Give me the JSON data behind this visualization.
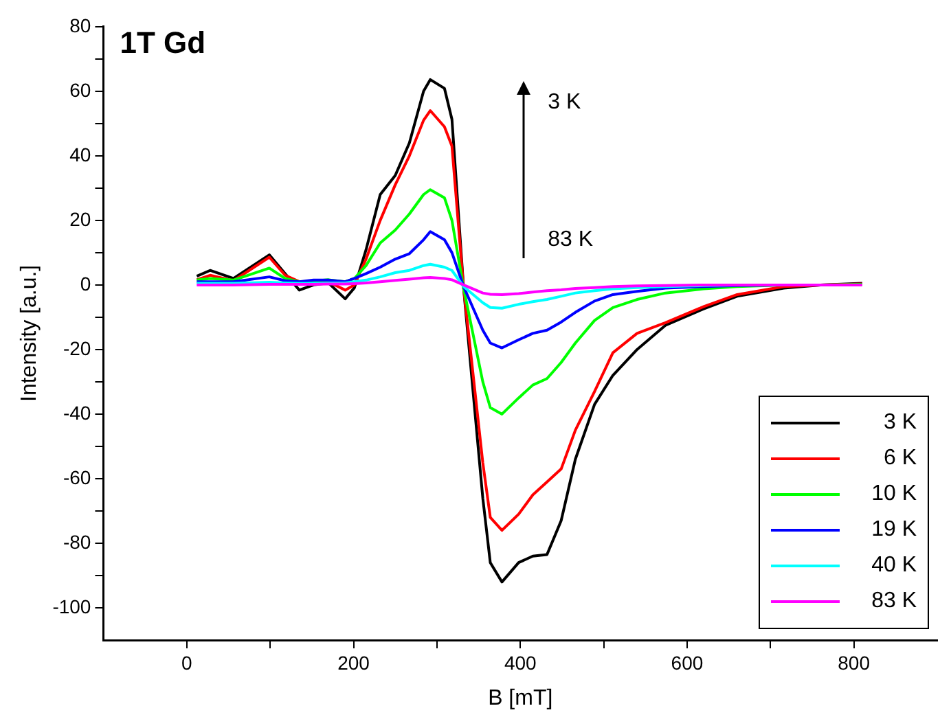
{
  "chart_data": {
    "type": "line",
    "title": "1T Gd",
    "xlabel": "B [mT]",
    "ylabel": "Intensity [a.u.]",
    "x": [
      12,
      28,
      56,
      99,
      118,
      135,
      152,
      170,
      190,
      201,
      215,
      232,
      250,
      267,
      284,
      292,
      309,
      318,
      332,
      355,
      364,
      378,
      398,
      415,
      432,
      449,
      466,
      489,
      511,
      540,
      574,
      620,
      660,
      716,
      760,
      810
    ],
    "series": [
      {
        "name": "3 K",
        "color": "#000000",
        "values": [
          2.7,
          4.5,
          2,
          9.3,
          3.5,
          -1.6,
          0,
          0.6,
          -4.3,
          -0.9,
          10.9,
          28,
          33.9,
          44,
          60,
          63.6,
          60.9,
          51.3,
          -1,
          -66,
          -86,
          -92,
          -86,
          -84,
          -83.5,
          -73,
          -54,
          -37,
          -28,
          -20,
          -12.5,
          -7.4,
          -3.5,
          -1,
          0,
          0.5
        ]
      },
      {
        "name": "6 K",
        "color": "#ff0000",
        "values": [
          1.6,
          3,
          1.3,
          8.6,
          3,
          1,
          0.5,
          1,
          -1.6,
          0,
          8,
          20,
          31,
          40,
          51,
          54,
          49,
          43,
          -1,
          -55,
          -72,
          -76,
          -71,
          -65,
          -61,
          -57,
          -45,
          -33,
          -21,
          -15,
          -11.7,
          -6.7,
          -3,
          -0.5,
          0,
          0.3
        ]
      },
      {
        "name": "10 K",
        "color": "#00ff00",
        "values": [
          1.5,
          2,
          1.5,
          5.2,
          2,
          1,
          1.2,
          1.6,
          1,
          2,
          6,
          13,
          17,
          22,
          28,
          29.5,
          27,
          20,
          -1,
          -30,
          -38,
          -40,
          -35,
          -31,
          -29,
          -24,
          -18,
          -11,
          -7,
          -4.5,
          -2.5,
          -1.2,
          -0.5,
          0,
          0,
          0.2
        ]
      },
      {
        "name": "19 K",
        "color": "#0000ff",
        "values": [
          1,
          1,
          1,
          2.5,
          1.3,
          1,
          1.5,
          1.5,
          1,
          2,
          3.5,
          5.5,
          8,
          9.7,
          14,
          16.5,
          14,
          10,
          -0.5,
          -14,
          -18,
          -19.5,
          -17,
          -15,
          -14,
          -11.5,
          -8.5,
          -5,
          -3,
          -2,
          -1,
          -0.5,
          -0.2,
          0,
          null,
          null
        ]
      },
      {
        "name": "40 K",
        "color": "#00ffff",
        "values": [
          0.5,
          0.5,
          0.5,
          0.8,
          0.6,
          0.5,
          0.5,
          0.6,
          0.6,
          1,
          1.5,
          2.5,
          3.8,
          4.5,
          6,
          6.4,
          5.5,
          4.5,
          -0.5,
          -5.5,
          -7,
          -7.2,
          -6,
          -5.2,
          -4.5,
          -3.5,
          -2.5,
          -1.8,
          -1.2,
          -0.8,
          -0.5,
          -0.2,
          0,
          null,
          null,
          null
        ]
      },
      {
        "name": "83 K",
        "color": "#ff00ff",
        "values": [
          0,
          0,
          0,
          0.2,
          0.2,
          0.2,
          0.2,
          0.3,
          0.3,
          0.4,
          0.6,
          1,
          1.4,
          1.8,
          2.2,
          2.3,
          2,
          1.6,
          0,
          -2.5,
          -2.9,
          -3,
          -2.7,
          -2.2,
          -1.8,
          -1.5,
          -1.1,
          -0.8,
          -0.5,
          -0.3,
          -0.2,
          0,
          0,
          0,
          0,
          0
        ]
      }
    ],
    "annotations": [
      "3 K",
      "83 K"
    ],
    "xlim": [
      -100,
      900
    ],
    "xticks": [
      0,
      {
        "value": 100,
        "label": null
      },
      200,
      {
        "value": 300,
        "label": null
      },
      400,
      {
        "value": 500,
        "label": null
      },
      600,
      {
        "value": 700,
        "label": null
      },
      800
    ],
    "ylim": [
      -110,
      80
    ],
    "yticks": [
      -100,
      {
        "value": -90,
        "label": null
      },
      -80,
      {
        "value": -70,
        "label": null
      },
      -60,
      {
        "value": -50,
        "label": null
      },
      -40,
      {
        "value": -30,
        "label": null
      },
      -20,
      {
        "value": -10,
        "label": null
      },
      0,
      {
        "value": 10,
        "label": null
      },
      20,
      {
        "value": 30,
        "label": null
      },
      40,
      {
        "value": 50,
        "label": null
      },
      60,
      {
        "value": 70,
        "label": null
      },
      80
    ],
    "grid": false,
    "legend": "bottom right",
    "marker": "none",
    "line_style": "solid"
  }
}
